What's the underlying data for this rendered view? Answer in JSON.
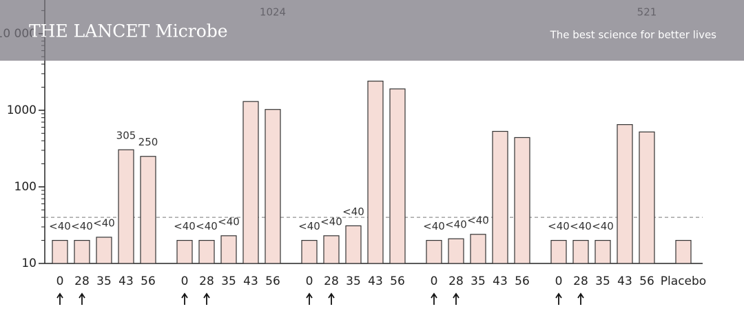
{
  "banner": {
    "title": "THE LANCET Microbe",
    "tagline": "The best science for better lives"
  },
  "chart_data": {
    "type": "bar",
    "categories": [
      "0",
      "28",
      "35",
      "43",
      "56",
      "0",
      "28",
      "35",
      "43",
      "56",
      "0",
      "28",
      "35",
      "43",
      "56",
      "0",
      "28",
      "35",
      "43",
      "56",
      "0",
      "28",
      "35",
      "43",
      "56",
      "Placebo"
    ],
    "values": [
      20,
      20,
      22,
      305,
      250,
      20,
      20,
      23,
      1300,
      1024,
      20,
      23,
      31,
      2400,
      1900,
      20,
      21,
      24,
      530,
      440,
      20,
      20,
      20,
      650,
      521,
      20
    ],
    "value_labels": [
      "<40",
      "<40",
      "<40",
      "305",
      "250",
      "<40",
      "<40",
      "<40",
      null,
      "1024",
      "<40",
      "<40",
      "<40",
      null,
      null,
      "<40",
      "<40",
      "<40",
      null,
      null,
      "<40",
      "<40",
      "<40",
      null,
      "521",
      null
    ],
    "color": "#f6ddd7",
    "log_y": true,
    "ylim": [
      10,
      27500
    ],
    "yticks": [
      10,
      100,
      1000,
      {
        "value": 10000,
        "label": "10 000"
      }
    ],
    "threshold": 40
  }
}
